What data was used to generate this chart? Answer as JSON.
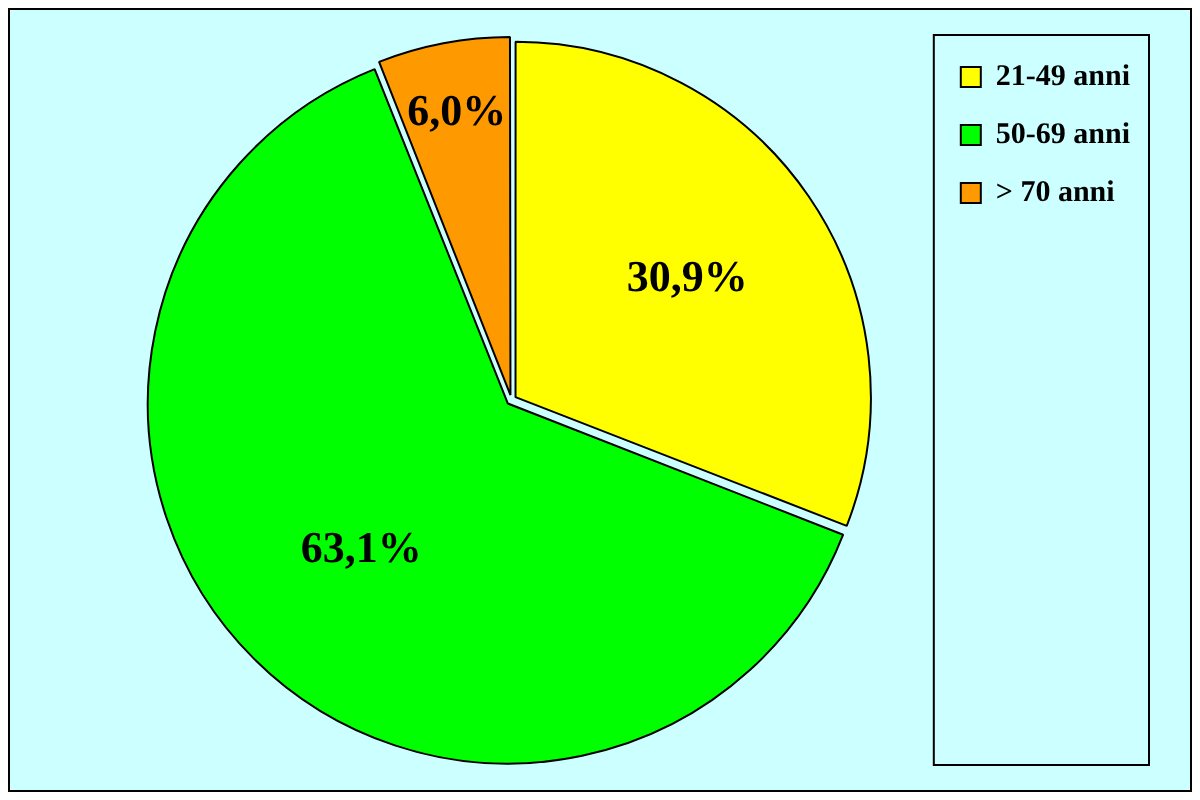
{
  "chart_data": {
    "type": "pie",
    "categories": [
      "21-49 anni",
      "50-69 anni",
      "> 70 anni"
    ],
    "values": [
      30.9,
      63.1,
      6.0
    ],
    "colors": [
      "#ffff00",
      "#00ff00",
      "#ff9900"
    ],
    "value_labels": [
      "30,9%",
      "63,1%",
      "6,0%"
    ],
    "legend": "right"
  }
}
